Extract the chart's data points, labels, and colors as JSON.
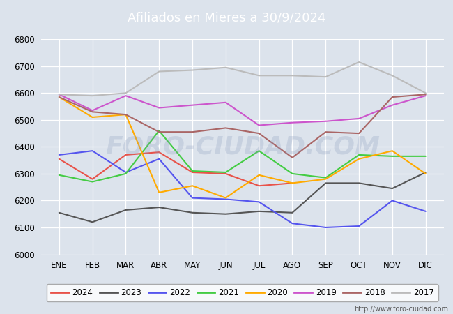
{
  "title": "Afiliados en Mieres a 30/9/2024",
  "ylim": [
    6000,
    6800
  ],
  "yticks": [
    6000,
    6100,
    6200,
    6300,
    6400,
    6500,
    6600,
    6700,
    6800
  ],
  "months": [
    "ENE",
    "FEB",
    "MAR",
    "ABR",
    "MAY",
    "JUN",
    "JUL",
    "AGO",
    "SEP",
    "OCT",
    "NOV",
    "DIC"
  ],
  "series": {
    "2024": {
      "color": "#e8534a",
      "data": [
        6355,
        6280,
        6370,
        6380,
        6305,
        6300,
        6255,
        6265,
        null,
        null,
        null,
        null
      ]
    },
    "2023": {
      "color": "#555555",
      "data": [
        6155,
        6120,
        6165,
        6175,
        6155,
        6150,
        6160,
        6155,
        6265,
        6265,
        6245,
        6305
      ]
    },
    "2022": {
      "color": "#5555ee",
      "data": [
        6370,
        6385,
        6305,
        6355,
        6210,
        6205,
        6195,
        6115,
        6100,
        6105,
        6200,
        6160
      ]
    },
    "2021": {
      "color": "#44cc44",
      "data": [
        6295,
        6270,
        6300,
        6460,
        6310,
        6305,
        6385,
        6300,
        6285,
        6370,
        6365,
        6365
      ]
    },
    "2020": {
      "color": "#ffaa00",
      "data": [
        6585,
        6510,
        6520,
        6230,
        6255,
        6210,
        6295,
        6265,
        6280,
        6355,
        6385,
        6300
      ]
    },
    "2019": {
      "color": "#cc55cc",
      "data": [
        6595,
        6535,
        6590,
        6545,
        6555,
        6565,
        6480,
        6490,
        6495,
        6505,
        6555,
        6590
      ]
    },
    "2018": {
      "color": "#aa6666",
      "data": [
        6585,
        6530,
        6520,
        6455,
        6455,
        6470,
        6450,
        6360,
        6455,
        6450,
        6585,
        6595
      ]
    },
    "2017": {
      "color": "#bbbbbb",
      "data": [
        6595,
        6590,
        6600,
        6680,
        6685,
        6695,
        6665,
        6665,
        6660,
        6715,
        6665,
        6600
      ]
    }
  },
  "watermark": "FORO-CIUDAD.COM",
  "url": "http://www.foro-ciudad.com",
  "title_bg": "#4a90d9",
  "title_color": "white",
  "bg_color": "#dce3ec",
  "plot_bg": "#dce3ec",
  "legend_years": [
    "2024",
    "2023",
    "2022",
    "2021",
    "2020",
    "2019",
    "2018",
    "2017"
  ]
}
